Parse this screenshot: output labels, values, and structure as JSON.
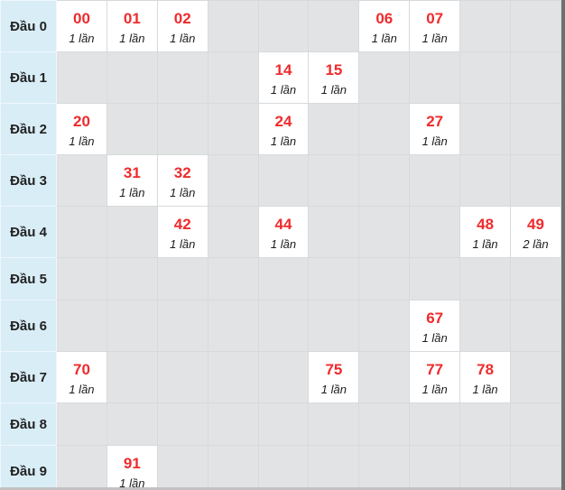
{
  "colors": {
    "label_bg": "#d9edf7",
    "empty_cell_bg": "#e2e3e4",
    "filled_cell_bg": "#ffffff",
    "number_color": "#ee2b2d",
    "count_color": "#1b1b1b",
    "label_color": "#222222",
    "grid_line": "#d7dadc",
    "scrollbar": "#6f6f6f",
    "bottom_edge": "#c2c2c2"
  },
  "table": {
    "columns": 10,
    "label_col_width": 62,
    "rows": [
      {
        "label": "Đầu 0",
        "height": 57,
        "cells": {
          "0": {
            "number": "00",
            "count": "1 lần"
          },
          "1": {
            "number": "01",
            "count": "1 lần"
          },
          "2": {
            "number": "02",
            "count": "1 lần"
          },
          "6": {
            "number": "06",
            "count": "1 lần"
          },
          "7": {
            "number": "07",
            "count": "1 lần"
          }
        }
      },
      {
        "label": "Đầu 1",
        "height": 57,
        "cells": {
          "4": {
            "number": "14",
            "count": "1 lần"
          },
          "5": {
            "number": "15",
            "count": "1 lần"
          }
        }
      },
      {
        "label": "Đầu 2",
        "height": 57,
        "cells": {
          "0": {
            "number": "20",
            "count": "1 lần"
          },
          "4": {
            "number": "24",
            "count": "1 lần"
          },
          "7": {
            "number": "27",
            "count": "1 lần"
          }
        }
      },
      {
        "label": "Đầu 3",
        "height": 57,
        "cells": {
          "1": {
            "number": "31",
            "count": "1 lần"
          },
          "2": {
            "number": "32",
            "count": "1 lần"
          }
        }
      },
      {
        "label": "Đầu 4",
        "height": 57,
        "cells": {
          "2": {
            "number": "42",
            "count": "1 lần"
          },
          "4": {
            "number": "44",
            "count": "1 lần"
          },
          "8": {
            "number": "48",
            "count": "1 lần"
          },
          "9": {
            "number": "49",
            "count": "2 lần"
          }
        }
      },
      {
        "label": "Đầu 5",
        "height": 47,
        "cells": {}
      },
      {
        "label": "Đầu 6",
        "height": 57,
        "cells": {
          "7": {
            "number": "67",
            "count": "1 lần"
          }
        }
      },
      {
        "label": "Đầu 7",
        "height": 57,
        "cells": {
          "0": {
            "number": "70",
            "count": "1 lần"
          },
          "5": {
            "number": "75",
            "count": "1 lần"
          },
          "7": {
            "number": "77",
            "count": "1 lần"
          },
          "8": {
            "number": "78",
            "count": "1 lần"
          }
        }
      },
      {
        "label": "Đầu 8",
        "height": 47,
        "cells": {}
      },
      {
        "label": "Đầu 9",
        "height": 57,
        "cells": {
          "1": {
            "number": "91",
            "count": "1 lần"
          }
        }
      }
    ]
  }
}
